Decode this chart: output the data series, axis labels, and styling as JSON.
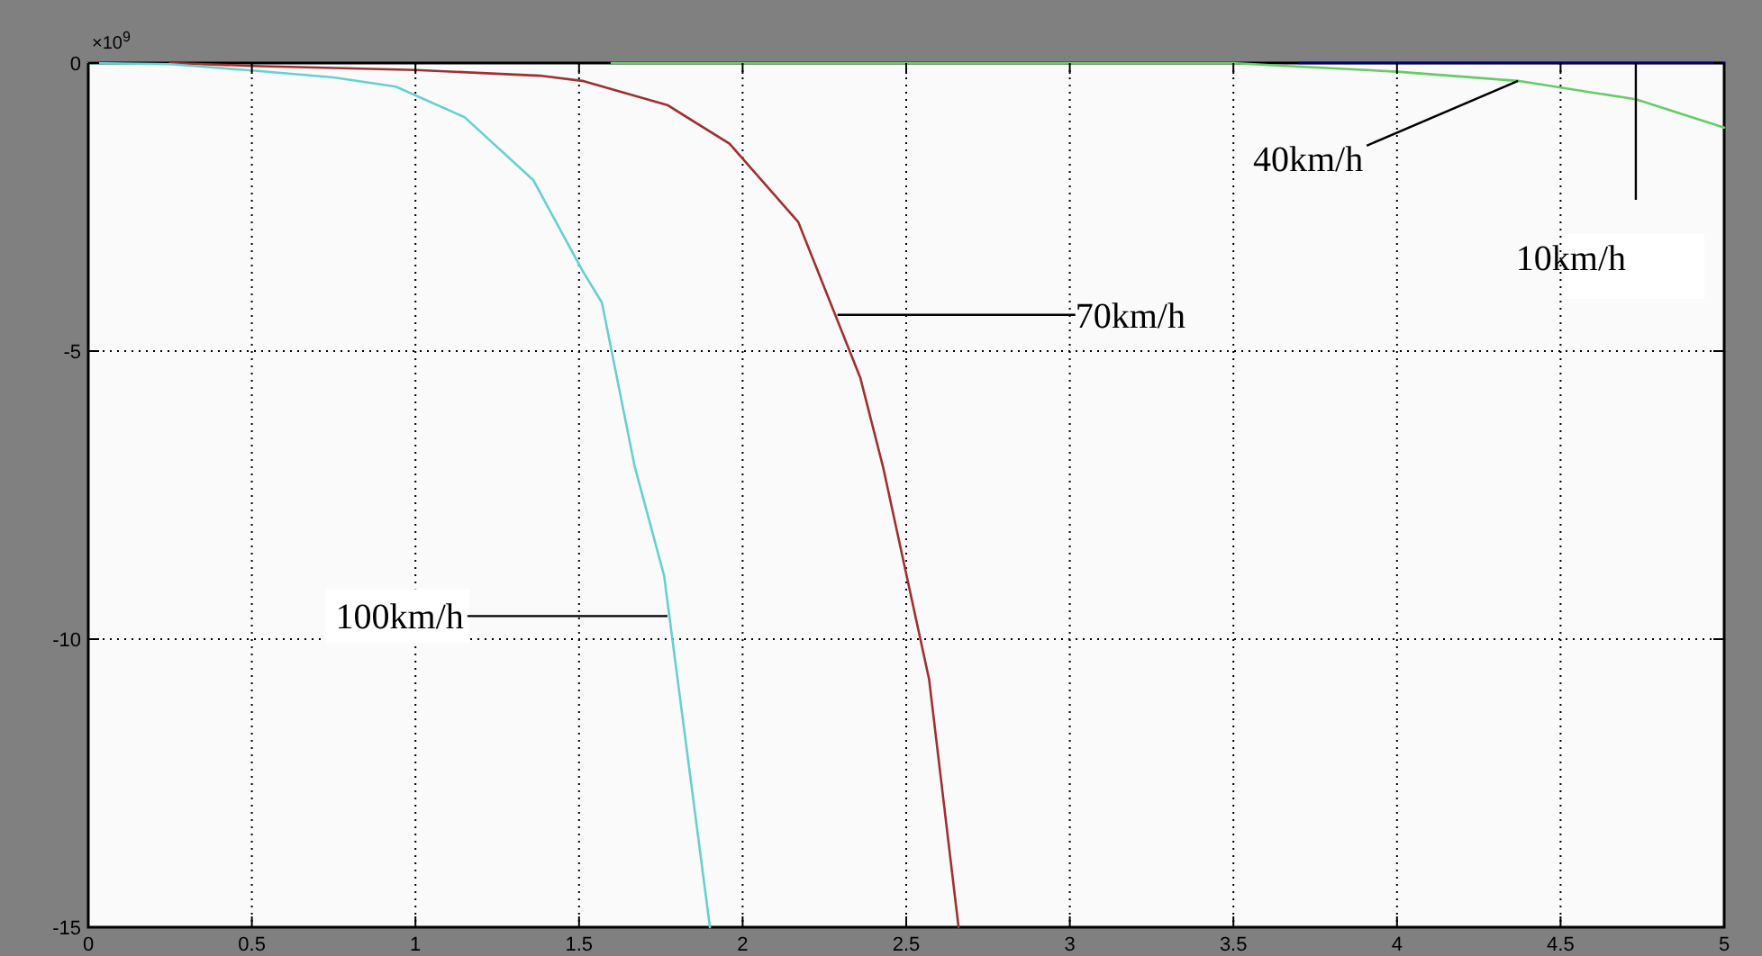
{
  "chart_data": {
    "type": "line",
    "xlim": [
      0,
      5
    ],
    "ylim": [
      -15,
      0
    ],
    "xticks": [
      0,
      0.5,
      1,
      1.5,
      2,
      2.5,
      3,
      3.5,
      4,
      4.5,
      5
    ],
    "yticks": [
      -15,
      -10,
      -5,
      0
    ],
    "grid": true,
    "line_style": "solid",
    "marker": "none",
    "series": [
      {
        "color": "#000080",
        "x": [
          3.7,
          4,
          4.5,
          5
        ],
        "values": [
          0,
          0,
          0,
          0
        ]
      },
      {
        "color": "#66cc66",
        "x": [
          1.6,
          2.5,
          3.5,
          3.66,
          4.0,
          4.37,
          4.73,
          5.0
        ],
        "values": [
          0,
          0,
          0,
          -0.05,
          -0.15,
          -0.31,
          -0.63,
          -1.12
        ]
      },
      {
        "color": "#a03030",
        "x": [
          0.25,
          0.5,
          1.0,
          1.38,
          1.51,
          1.77,
          1.96,
          2.17,
          2.36,
          2.43,
          2.57,
          2.66
        ],
        "values": [
          0,
          -0.05,
          -0.12,
          -0.22,
          -0.31,
          -0.73,
          -1.4,
          -2.76,
          -5.47,
          -7.03,
          -10.7,
          -15
        ]
      },
      {
        "color": "#66d0d0",
        "x": [
          0,
          0.25,
          0.5,
          0.75,
          0.94,
          1.15,
          1.36,
          1.51,
          1.57,
          1.67,
          1.76,
          1.9
        ],
        "values": [
          0,
          -0.02,
          -0.13,
          -0.25,
          -0.41,
          -0.94,
          -2.03,
          -3.6,
          -4.16,
          -7.0,
          -8.9,
          -15
        ]
      }
    ],
    "annotations": [
      "×10$^{9}$",
      {
        "text": "40km/h",
        "x": 4.37,
        "y": -0.31
      },
      {
        "text": "10km/h",
        "x": 4.73,
        "y": 0
      },
      {
        "text": "70km/h",
        "x": 2.29,
        "y": -4.37
      },
      {
        "text": "100km/h",
        "x": 1.77,
        "y": -9.6
      }
    ]
  }
}
